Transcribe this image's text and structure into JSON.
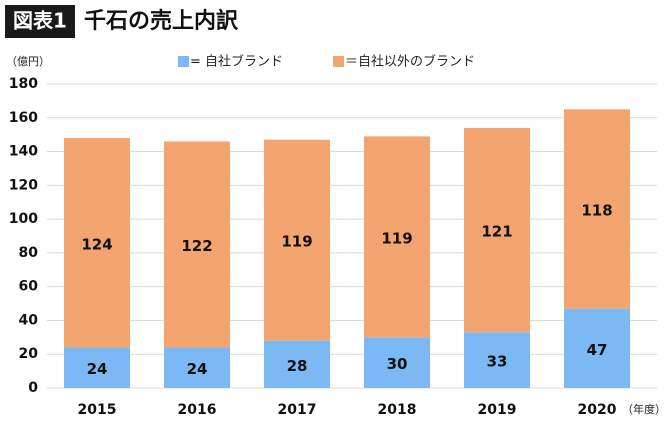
{
  "badge": "図表1",
  "chart_data": {
    "type": "stacked-bar",
    "title": "千石の売上内訳",
    "y_unit": "（億円）",
    "x_unit": "（年度）",
    "categories": [
      "2015",
      "2016",
      "2017",
      "2018",
      "2019",
      "2020"
    ],
    "series": [
      {
        "name": "= 自社ブランド",
        "color": "#7cb9f4",
        "values": [
          24,
          24,
          28,
          30,
          33,
          47
        ]
      },
      {
        "name": "＝自社以外のブランド",
        "color": "#f4a46f",
        "values": [
          124,
          122,
          119,
          119,
          121,
          118
        ]
      }
    ],
    "ylim": [
      0,
      180
    ],
    "yticks": [
      0,
      20,
      40,
      60,
      80,
      100,
      120,
      140,
      160,
      180
    ],
    "grid": true
  }
}
